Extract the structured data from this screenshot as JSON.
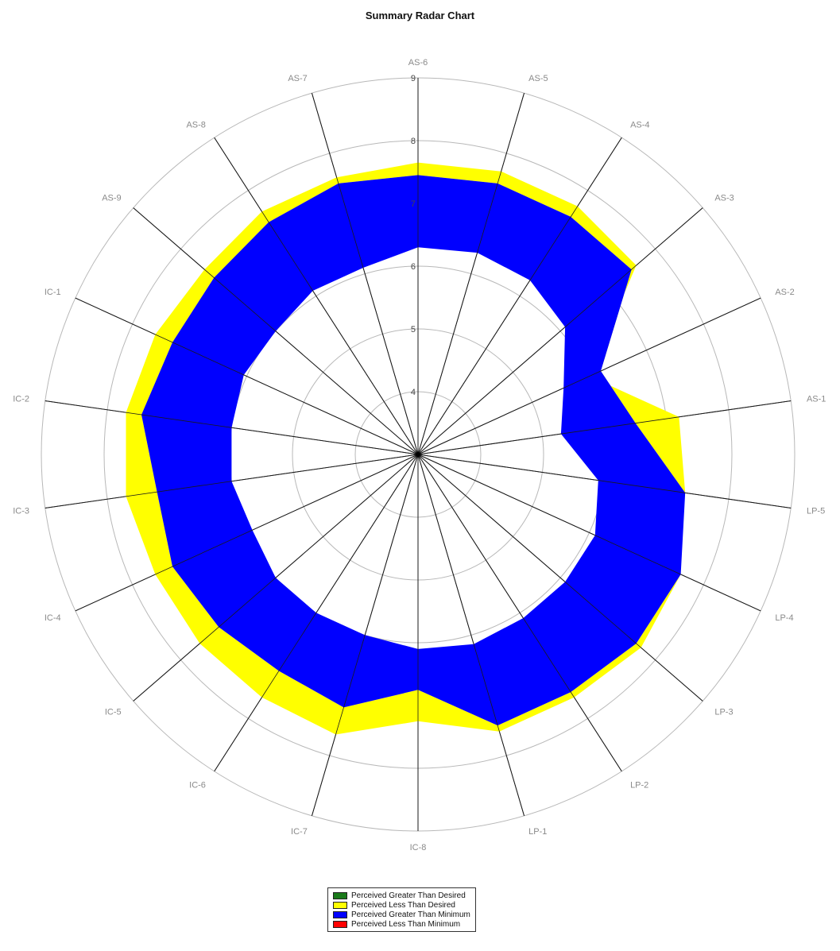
{
  "chart_data": {
    "type": "radar",
    "title": "Summary Radar Chart",
    "categories": [
      "AS-6",
      "AS-5",
      "AS-4",
      "AS-3",
      "AS-2",
      "AS-1",
      "LP-5",
      "LP-4",
      "LP-3",
      "LP-2",
      "LP-1",
      "IC-8",
      "IC-7",
      "IC-6",
      "IC-5",
      "IC-4",
      "IC-3",
      "IC-2",
      "IC-1",
      "AS-9",
      "AS-8",
      "AS-7"
    ],
    "rlim": [
      3,
      9
    ],
    "ticks": [
      4,
      5,
      6,
      7,
      8,
      9
    ],
    "tick_labels": [
      "4",
      "5",
      "6",
      "7",
      "8",
      "9"
    ],
    "grid": true,
    "legend_position": "bottom",
    "colors": {
      "perceived_greater_than_desired": "#1a7a1a",
      "perceived_less_than_desired": "#ffff00",
      "perceived_greater_than_minimum": "#0000ff",
      "perceived_less_than_minimum": "#ff0000"
    },
    "series": [
      {
        "name": "Desired",
        "values": [
          7.65,
          7.7,
          7.7,
          7.6,
          6.0,
          7.2,
          7.3,
          7.6,
          7.7,
          7.6,
          7.6,
          7.25,
          7.65,
          7.6,
          7.6,
          7.6,
          7.7,
          7.7,
          7.6,
          7.5,
          7.6,
          7.6
        ]
      },
      {
        "name": "Perceived",
        "values": [
          7.45,
          7.5,
          7.5,
          7.5,
          6.2,
          6.5,
          7.3,
          7.6,
          7.6,
          7.5,
          7.5,
          6.75,
          7.2,
          7.1,
          7.2,
          7.3,
          7.2,
          7.45,
          7.3,
          7.3,
          7.4,
          7.5
        ]
      },
      {
        "name": "Minimum",
        "values": [
          6.3,
          6.35,
          6.3,
          6.1,
          5.55,
          5.3,
          5.9,
          6.1,
          6.1,
          6.1,
          6.15,
          6.1,
          6.0,
          6.0,
          6.0,
          5.9,
          6.0,
          6.0,
          6.05,
          6.0,
          6.1,
          6.1
        ]
      }
    ]
  },
  "legend": {
    "items": [
      {
        "label": "Perceived Greater Than Desired",
        "color": "#1a7a1a"
      },
      {
        "label": "Perceived Less Than Desired",
        "color": "#ffff00"
      },
      {
        "label": "Perceived Greater Than Minimum",
        "color": "#0000ff"
      },
      {
        "label": "Perceived Less Than Minimum",
        "color": "#ff0000"
      }
    ]
  }
}
